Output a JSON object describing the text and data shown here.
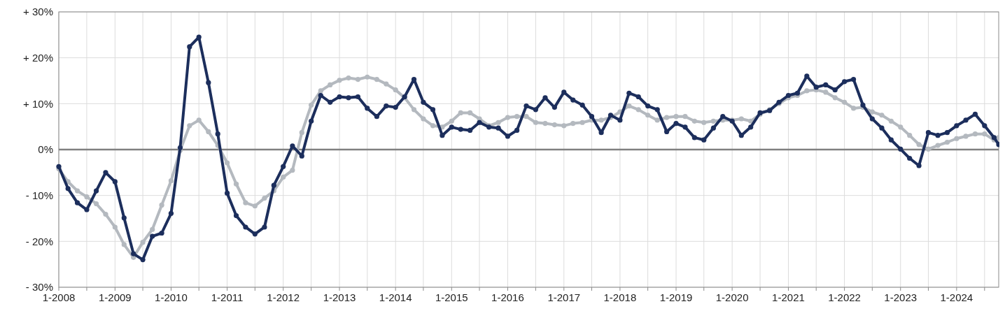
{
  "chart_data": {
    "type": "line",
    "x": [
      "2008-01",
      "2008-03",
      "2008-05",
      "2008-07",
      "2008-09",
      "2008-11",
      "2009-01",
      "2009-03",
      "2009-05",
      "2009-07",
      "2009-09",
      "2009-11",
      "2010-01",
      "2010-03",
      "2010-05",
      "2010-07",
      "2010-09",
      "2010-11",
      "2011-01",
      "2011-03",
      "2011-05",
      "2011-07",
      "2011-09",
      "2011-11",
      "2012-01",
      "2012-03",
      "2012-05",
      "2012-07",
      "2012-09",
      "2012-11",
      "2013-01",
      "2013-03",
      "2013-05",
      "2013-07",
      "2013-09",
      "2013-11",
      "2014-01",
      "2014-03",
      "2014-05",
      "2014-07",
      "2014-09",
      "2014-11",
      "2015-01",
      "2015-03",
      "2015-05",
      "2015-07",
      "2015-09",
      "2015-11",
      "2016-01",
      "2016-03",
      "2016-05",
      "2016-07",
      "2016-09",
      "2016-11",
      "2017-01",
      "2017-03",
      "2017-05",
      "2017-07",
      "2017-09",
      "2017-11",
      "2018-01",
      "2018-03",
      "2018-05",
      "2018-07",
      "2018-09",
      "2018-11",
      "2019-01",
      "2019-03",
      "2019-05",
      "2019-07",
      "2019-09",
      "2019-11",
      "2020-01",
      "2020-03",
      "2020-05",
      "2020-07",
      "2020-09",
      "2020-11",
      "2021-01",
      "2021-03",
      "2021-05",
      "2021-07",
      "2021-09",
      "2021-11",
      "2022-01",
      "2022-03",
      "2022-05",
      "2022-07",
      "2022-09",
      "2022-11",
      "2023-01",
      "2023-03",
      "2023-05",
      "2023-07",
      "2023-09",
      "2023-11",
      "2024-01",
      "2024-03",
      "2024-05",
      "2024-07",
      "2024-09",
      "2024-10"
    ],
    "series": [
      {
        "color": "#b4b9bf",
        "values": [
          -4.2,
          -7,
          -9,
          -10.3,
          -11.8,
          -14.1,
          -16.9,
          -20.7,
          -23.5,
          -20.2,
          -17.4,
          -12.1,
          -6.8,
          -0.2,
          5.2,
          6.4,
          3.9,
          0.9,
          -2.9,
          -7.5,
          -11.6,
          -12.3,
          -10.6,
          -9,
          -6,
          -4.5,
          3.7,
          9.7,
          12.8,
          14.1,
          15.1,
          15.6,
          15.3,
          15.8,
          15.3,
          14.3,
          13,
          11.3,
          8.7,
          6.7,
          5.2,
          4.9,
          6.2,
          8,
          8,
          6.7,
          5.2,
          5.9,
          7,
          7.2,
          7.2,
          5.9,
          5.7,
          5.4,
          5.2,
          5.7,
          5.9,
          6.4,
          6.4,
          7,
          8.2,
          9.5,
          8.7,
          7.5,
          6.4,
          7,
          7.2,
          7.2,
          6.2,
          5.9,
          6.2,
          6.4,
          6.4,
          6.7,
          6.2,
          7.7,
          8.7,
          10,
          11.3,
          11.8,
          12.8,
          13,
          12.5,
          11.3,
          10.3,
          9,
          9.2,
          8.2,
          7.5,
          6.2,
          4.9,
          3.1,
          1.1,
          0.1,
          0.9,
          1.6,
          2.4,
          2.9,
          3.4,
          3.4,
          2.1,
          2.6
        ]
      },
      {
        "color": "#1c2e5c",
        "values": [
          -3.7,
          -8.5,
          -11.6,
          -13.1,
          -9,
          -5,
          -7,
          -14.9,
          -22.7,
          -24,
          -18.9,
          -18.2,
          -13.9,
          0.4,
          22.4,
          24.5,
          14.6,
          3.4,
          -9.5,
          -14.4,
          -16.9,
          -18.4,
          -16.9,
          -7.8,
          -3.7,
          0.8,
          -1.4,
          6.2,
          11.8,
          10.3,
          11.5,
          11.3,
          11.5,
          9,
          7.2,
          9.5,
          9.2,
          11.5,
          15.3,
          10.3,
          8.7,
          3.1,
          4.9,
          4.4,
          4.2,
          5.9,
          4.9,
          4.7,
          2.9,
          4.2,
          9.5,
          8.7,
          11.3,
          9.2,
          12.5,
          10.8,
          9.7,
          7.2,
          3.7,
          7.5,
          6.4,
          12.3,
          11.5,
          9.5,
          8.7,
          3.9,
          5.7,
          4.9,
          2.6,
          2.1,
          4.7,
          7.2,
          6.2,
          3.1,
          4.9,
          8,
          8.5,
          10.3,
          11.8,
          12.3,
          16,
          13.6,
          14.1,
          13,
          14.8,
          15.3,
          9.7,
          6.7,
          4.7,
          2.1,
          0.1,
          -1.9,
          -3.5,
          3.7,
          3.1,
          3.7,
          5.2,
          6.4,
          7.7,
          5.2,
          2.6,
          1.1
        ]
      }
    ],
    "xlim": [
      "2008-01",
      "2024-10"
    ],
    "xticks": [
      {
        "value": "2008-01",
        "label": "1-2008"
      },
      {
        "value": "2008-07",
        "label": null
      },
      {
        "value": "2009-01",
        "label": "1-2009"
      },
      {
        "value": "2009-07",
        "label": null
      },
      {
        "value": "2010-01",
        "label": "1-2010"
      },
      {
        "value": "2010-07",
        "label": null
      },
      {
        "value": "2011-01",
        "label": "1-2011"
      },
      {
        "value": "2011-07",
        "label": null
      },
      {
        "value": "2012-01",
        "label": "1-2012"
      },
      {
        "value": "2012-07",
        "label": null
      },
      {
        "value": "2013-01",
        "label": "1-2013"
      },
      {
        "value": "2013-07",
        "label": null
      },
      {
        "value": "2014-01",
        "label": "1-2014"
      },
      {
        "value": "2014-07",
        "label": null
      },
      {
        "value": "2015-01",
        "label": "1-2015"
      },
      {
        "value": "2015-07",
        "label": null
      },
      {
        "value": "2016-01",
        "label": "1-2016"
      },
      {
        "value": "2016-07",
        "label": null
      },
      {
        "value": "2017-01",
        "label": "1-2017"
      },
      {
        "value": "2017-07",
        "label": null
      },
      {
        "value": "2018-01",
        "label": "1-2018"
      },
      {
        "value": "2018-07",
        "label": null
      },
      {
        "value": "2019-01",
        "label": "1-2019"
      },
      {
        "value": "2019-07",
        "label": null
      },
      {
        "value": "2020-01",
        "label": "1-2020"
      },
      {
        "value": "2020-07",
        "label": null
      },
      {
        "value": "2021-01",
        "label": "1-2021"
      },
      {
        "value": "2021-07",
        "label": null
      },
      {
        "value": "2022-01",
        "label": "1-2022"
      },
      {
        "value": "2022-07",
        "label": null
      },
      {
        "value": "2023-01",
        "label": "1-2023"
      },
      {
        "value": "2023-07",
        "label": null
      },
      {
        "value": "2024-01",
        "label": "1-2024"
      },
      {
        "value": "2024-07",
        "label": null
      }
    ],
    "ylim": [
      -30,
      30
    ],
    "yticks": [
      {
        "value": -30,
        "label": "- 30%"
      },
      {
        "value": -20,
        "label": "- 20%"
      },
      {
        "value": -10,
        "label": "- 10%"
      },
      {
        "value": 0,
        "label": "0%"
      },
      {
        "value": 10,
        "label": "+ 10%"
      },
      {
        "value": 20,
        "label": "+ 20%"
      },
      {
        "value": 30,
        "label": "+ 30%"
      }
    ],
    "ref_lines": [
      {
        "axis": "y",
        "value": 0,
        "color": "#808080"
      }
    ],
    "grid": true,
    "marker": "circle",
    "line_style": "solid"
  }
}
